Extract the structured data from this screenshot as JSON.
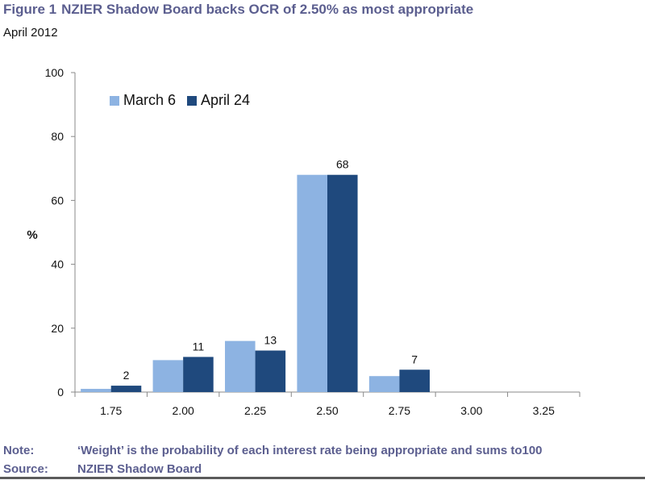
{
  "figure": {
    "number": "Figure 1",
    "title": "NZIER Shadow Board backs OCR of 2.50% as most appropriate",
    "subtitle": "April 2012"
  },
  "footer": {
    "note_label": "Note:",
    "note_text": "‘Weight’ is the probability of each interest rate being appropriate and sums to100",
    "source_label": "Source:",
    "source_text": "NZIER Shadow Board"
  },
  "colors": {
    "march": "#8db3e2",
    "april": "#1f497d",
    "axis": "#888888",
    "title": "#5b5e8f"
  },
  "chart_data": {
    "type": "bar",
    "categories": [
      "1.75",
      "2.00",
      "2.25",
      "2.50",
      "2.75",
      "3.00",
      "3.25"
    ],
    "series": [
      {
        "name": "March 6",
        "values": [
          1,
          10,
          16,
          68,
          5,
          0,
          0
        ],
        "color": "#8db3e2"
      },
      {
        "name": "April 24",
        "values": [
          2,
          11,
          13,
          68,
          7,
          0,
          0
        ],
        "color": "#1f497d",
        "labels": [
          "2",
          "11",
          "13",
          "68",
          "7",
          "",
          ""
        ]
      }
    ],
    "ylabel": "%",
    "xlabel": "",
    "ylim": [
      0,
      100
    ],
    "yticks": [
      "0",
      "20",
      "40",
      "60",
      "80",
      "100"
    ],
    "grid": false,
    "legend": "top-left"
  }
}
